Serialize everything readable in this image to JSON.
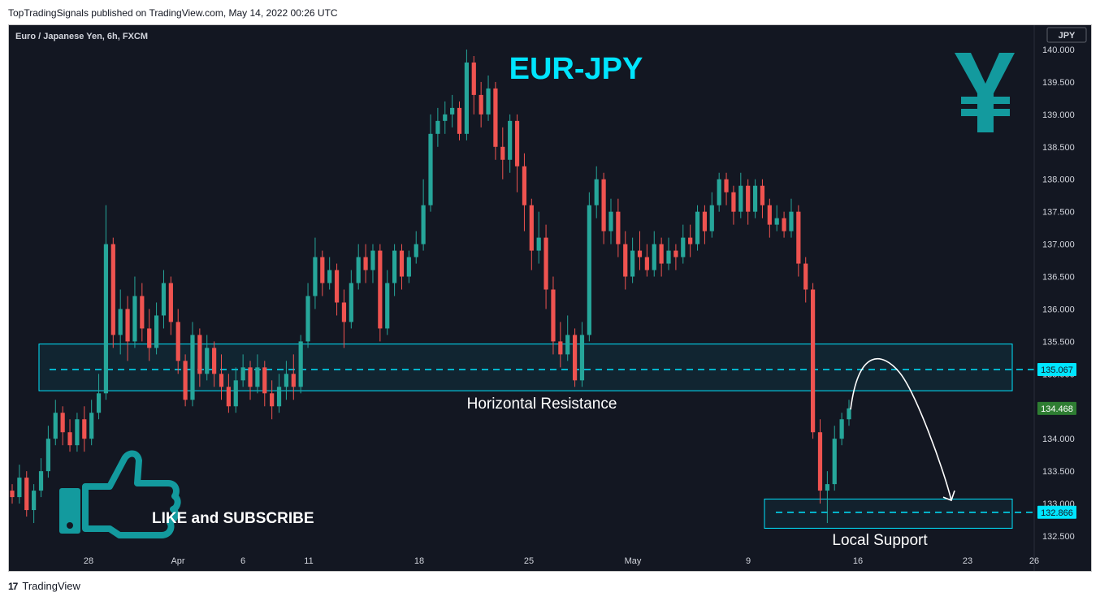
{
  "caption": "TopTradingSignals published on TradingView.com, May 14, 2022 00:26 UTC",
  "brand": "TradingView",
  "brand_logo": "17",
  "colors": {
    "up": "#26a69a",
    "down": "#ef5350",
    "zone": "#00e5ff",
    "background": "#131722",
    "accent": "#00e5ff",
    "badge": "#2e7d32"
  },
  "chart_data": {
    "type": "candlestick",
    "title": "EUR-JPY",
    "symbol_label": "Euro / Japanese Yen, 6h, FXCM",
    "currency_label": "JPY",
    "currency_icon": "yen-icon",
    "ylim": [
      132.2,
      140.2
    ],
    "y_ticks": [
      "140.000",
      "139.500",
      "139.000",
      "138.500",
      "138.000",
      "137.500",
      "137.000",
      "136.500",
      "136.000",
      "135.500",
      "135.000",
      "134.000",
      "133.500",
      "133.000",
      "132.500"
    ],
    "x_ticks": [
      "28",
      "Apr",
      "6",
      "11",
      "18",
      "25",
      "May",
      "9",
      "16",
      "23",
      "26"
    ],
    "price_badges": {
      "resistance_level": "135.067",
      "current": "134.468",
      "support_level": "132.866"
    },
    "resistance_zone": {
      "low": 134.74,
      "high": 135.46,
      "level": 135.067,
      "label": "Horizontal Resistance"
    },
    "support_zone": {
      "low": 132.62,
      "high": 133.07,
      "level": 132.866,
      "label": "Local Support"
    },
    "projection": {
      "from": 134.45,
      "peak": 135.15,
      "to": 133.05
    },
    "cta_text": "LIKE and SUBSCRIBE",
    "candles": [
      [
        133.2,
        133.1,
        133.3,
        133.0
      ],
      [
        133.1,
        133.4,
        133.6,
        133.0
      ],
      [
        133.4,
        132.9,
        133.5,
        132.8
      ],
      [
        132.9,
        133.2,
        133.3,
        132.7
      ],
      [
        133.2,
        133.5,
        133.7,
        133.1
      ],
      [
        133.5,
        134.0,
        134.2,
        133.4
      ],
      [
        134.0,
        134.4,
        134.6,
        133.9
      ],
      [
        134.4,
        134.1,
        134.5,
        133.9
      ],
      [
        134.1,
        133.9,
        134.3,
        133.8
      ],
      [
        133.9,
        134.3,
        134.4,
        133.8
      ],
      [
        134.3,
        134.0,
        134.5,
        133.8
      ],
      [
        134.0,
        134.4,
        134.6,
        133.9
      ],
      [
        134.4,
        134.7,
        135.0,
        134.3
      ],
      [
        134.7,
        137.0,
        137.6,
        134.6
      ],
      [
        137.0,
        135.6,
        137.1,
        135.4
      ],
      [
        135.6,
        136.0,
        136.3,
        135.3
      ],
      [
        136.0,
        135.5,
        136.2,
        135.2
      ],
      [
        135.5,
        136.2,
        136.5,
        135.4
      ],
      [
        136.2,
        135.7,
        136.4,
        135.5
      ],
      [
        135.7,
        135.4,
        136.0,
        135.2
      ],
      [
        135.4,
        135.9,
        136.1,
        135.3
      ],
      [
        135.9,
        136.4,
        136.6,
        135.7
      ],
      [
        136.4,
        135.8,
        136.5,
        135.6
      ],
      [
        135.8,
        135.2,
        136.0,
        135.0
      ],
      [
        135.2,
        134.6,
        135.3,
        134.5
      ],
      [
        134.6,
        135.6,
        135.8,
        134.5
      ],
      [
        135.6,
        135.0,
        135.7,
        134.8
      ],
      [
        135.0,
        135.4,
        135.6,
        134.9
      ],
      [
        135.4,
        135.0,
        135.5,
        134.8
      ],
      [
        135.0,
        134.8,
        135.3,
        134.6
      ],
      [
        134.8,
        134.5,
        135.0,
        134.4
      ],
      [
        134.5,
        134.9,
        135.1,
        134.4
      ],
      [
        134.9,
        135.1,
        135.3,
        134.8
      ],
      [
        135.1,
        134.8,
        135.2,
        134.6
      ],
      [
        134.8,
        135.1,
        135.3,
        134.7
      ],
      [
        135.1,
        134.7,
        135.2,
        134.5
      ],
      [
        134.7,
        134.5,
        134.9,
        134.3
      ],
      [
        134.5,
        134.8,
        135.0,
        134.4
      ],
      [
        134.8,
        135.0,
        135.2,
        134.6
      ],
      [
        135.0,
        134.8,
        135.3,
        134.6
      ],
      [
        134.8,
        135.5,
        135.6,
        134.7
      ],
      [
        135.5,
        136.2,
        136.4,
        135.4
      ],
      [
        136.2,
        136.8,
        137.1,
        136.0
      ],
      [
        136.8,
        136.4,
        136.9,
        136.2
      ],
      [
        136.4,
        136.6,
        136.8,
        136.3
      ],
      [
        136.6,
        136.1,
        136.7,
        135.9
      ],
      [
        136.1,
        135.8,
        136.3,
        135.4
      ],
      [
        135.8,
        136.4,
        136.6,
        135.7
      ],
      [
        136.4,
        136.8,
        137.0,
        136.3
      ],
      [
        136.8,
        136.6,
        137.0,
        136.4
      ],
      [
        136.6,
        136.9,
        137.0,
        136.4
      ],
      [
        136.9,
        135.7,
        137.0,
        135.5
      ],
      [
        135.7,
        136.4,
        136.6,
        135.6
      ],
      [
        136.4,
        136.9,
        137.0,
        136.2
      ],
      [
        136.9,
        136.5,
        137.0,
        136.3
      ],
      [
        136.5,
        136.8,
        136.9,
        136.4
      ],
      [
        136.8,
        137.0,
        137.2,
        136.7
      ],
      [
        137.0,
        137.6,
        138.0,
        136.9
      ],
      [
        137.6,
        138.7,
        139.0,
        137.5
      ],
      [
        138.7,
        138.9,
        139.1,
        138.5
      ],
      [
        138.9,
        139.0,
        139.2,
        138.7
      ],
      [
        139.0,
        139.1,
        139.3,
        138.8
      ],
      [
        139.1,
        138.7,
        139.2,
        138.6
      ],
      [
        138.7,
        139.8,
        140.0,
        138.6
      ],
      [
        139.8,
        139.3,
        139.9,
        139.0
      ],
      [
        139.3,
        139.0,
        139.5,
        138.8
      ],
      [
        139.0,
        139.4,
        139.6,
        138.9
      ],
      [
        139.4,
        138.5,
        139.5,
        138.3
      ],
      [
        138.5,
        138.3,
        138.8,
        138.0
      ],
      [
        138.3,
        138.9,
        139.0,
        138.1
      ],
      [
        138.9,
        138.2,
        139.0,
        137.8
      ],
      [
        138.2,
        137.6,
        138.4,
        137.2
      ],
      [
        137.6,
        136.9,
        137.7,
        136.6
      ],
      [
        136.9,
        137.1,
        137.5,
        136.7
      ],
      [
        137.1,
        136.3,
        137.3,
        136.0
      ],
      [
        136.3,
        135.5,
        136.5,
        135.3
      ],
      [
        135.5,
        135.3,
        135.8,
        135.1
      ],
      [
        135.3,
        135.6,
        135.9,
        135.2
      ],
      [
        135.6,
        134.9,
        135.7,
        134.8
      ],
      [
        134.9,
        135.6,
        135.8,
        134.8
      ],
      [
        135.6,
        137.6,
        137.8,
        135.5
      ],
      [
        137.6,
        138.0,
        138.2,
        137.4
      ],
      [
        138.0,
        137.2,
        138.1,
        137.0
      ],
      [
        137.2,
        137.5,
        137.7,
        137.0
      ],
      [
        137.5,
        137.0,
        137.7,
        136.8
      ],
      [
        137.0,
        136.5,
        137.2,
        136.3
      ],
      [
        136.5,
        136.9,
        137.1,
        136.4
      ],
      [
        136.9,
        136.8,
        137.2,
        136.6
      ],
      [
        136.8,
        136.6,
        137.0,
        136.5
      ],
      [
        136.6,
        137.0,
        137.2,
        136.5
      ],
      [
        137.0,
        136.7,
        137.1,
        136.5
      ],
      [
        136.7,
        136.9,
        137.1,
        136.6
      ],
      [
        136.9,
        136.8,
        137.0,
        136.6
      ],
      [
        136.8,
        137.1,
        137.3,
        136.7
      ],
      [
        137.1,
        137.0,
        137.3,
        136.8
      ],
      [
        137.0,
        137.5,
        137.6,
        136.9
      ],
      [
        137.5,
        137.2,
        137.6,
        137.0
      ],
      [
        137.2,
        137.6,
        137.8,
        137.1
      ],
      [
        137.6,
        138.0,
        138.1,
        137.5
      ],
      [
        138.0,
        137.8,
        138.1,
        137.6
      ],
      [
        137.8,
        137.5,
        137.9,
        137.3
      ],
      [
        137.5,
        137.9,
        138.1,
        137.4
      ],
      [
        137.9,
        137.5,
        138.0,
        137.3
      ],
      [
        137.5,
        137.9,
        138.0,
        137.4
      ],
      [
        137.9,
        137.6,
        138.0,
        137.4
      ],
      [
        137.6,
        137.3,
        137.7,
        137.1
      ],
      [
        137.3,
        137.4,
        137.6,
        137.2
      ],
      [
        137.4,
        137.2,
        137.5,
        137.1
      ],
      [
        137.2,
        137.5,
        137.7,
        137.1
      ],
      [
        137.5,
        136.7,
        137.6,
        136.5
      ],
      [
        136.7,
        136.3,
        136.8,
        136.1
      ],
      [
        136.3,
        134.1,
        136.4,
        134.0
      ],
      [
        134.1,
        133.2,
        134.3,
        133.0
      ],
      [
        133.2,
        133.3,
        133.5,
        132.7
      ],
      [
        133.3,
        134.0,
        134.2,
        133.2
      ],
      [
        134.0,
        134.3,
        134.4,
        133.9
      ],
      [
        134.3,
        134.468,
        134.6,
        134.2
      ]
    ]
  }
}
